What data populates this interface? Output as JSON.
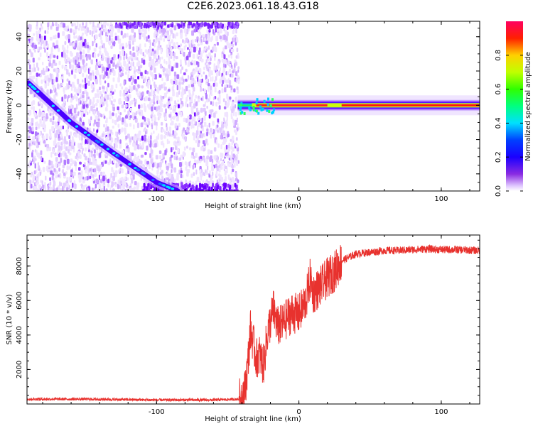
{
  "title": "C2E6.2023.061.18.43.G18",
  "colors": {
    "snr_line": "#e8322e",
    "ridge_low": "#5a00ff",
    "ridge_high": "#ff0000"
  },
  "chart_data": [
    {
      "type": "heatmap",
      "xlabel": "Height of straight line (km)",
      "ylabel": "Frequency (Hz)",
      "xlim": [
        -191,
        127
      ],
      "ylim": [
        -50,
        49
      ],
      "xticks": [
        -100,
        0,
        100
      ],
      "yticks": [
        -40,
        -20,
        0,
        20,
        40
      ],
      "colorbar": {
        "label": "Normalized spectral amplitude",
        "range": [
          0,
          1
        ],
        "ticks": [
          "0.0",
          "0.2",
          "0.4",
          "0.6",
          "0.8"
        ],
        "colormap": "rainbow (white-violet-blue-cyan-green-yellow-red)"
      },
      "features": {
        "descending_ridge": {
          "x": [
            -190,
            -160,
            -130,
            -100,
            -85
          ],
          "y": [
            13,
            -10,
            -28,
            -45,
            -50
          ],
          "amplitude": 0.3
        },
        "carrier_band": {
          "x_start": -43,
          "x_end": 127,
          "y": 0,
          "amplitude": 1.0
        },
        "noise_region": {
          "x_start": -191,
          "x_end": -43,
          "y_range": [
            -50,
            49
          ]
        }
      }
    },
    {
      "type": "line",
      "xlabel": "Height of straight line (km)",
      "ylabel": "SNR (10 * v/v)",
      "xlim": [
        -191,
        127
      ],
      "ylim": [
        0,
        9800
      ],
      "xticks": [
        -100,
        0,
        100
      ],
      "yticks": [
        2000,
        4000,
        6000,
        8000
      ],
      "series": [
        {
          "x": [
            -191,
            -150,
            -100,
            -60,
            -42,
            -38,
            -36,
            -34,
            -32,
            -30,
            -28,
            -25,
            -22,
            -18,
            -15,
            -12,
            -8,
            -5,
            0,
            5,
            8,
            10,
            15,
            20,
            25,
            30,
            40,
            50,
            60,
            70,
            80,
            90,
            100,
            110,
            127
          ],
          "values": [
            250,
            250,
            200,
            200,
            250,
            800,
            2200,
            4300,
            3500,
            2600,
            2900,
            2200,
            4100,
            5500,
            4500,
            4600,
            5000,
            5300,
            5200,
            6000,
            7300,
            6400,
            6800,
            7300,
            7700,
            8300,
            8700,
            8800,
            8900,
            8900,
            8950,
            9000,
            8950,
            8950,
            8900
          ]
        }
      ]
    }
  ]
}
